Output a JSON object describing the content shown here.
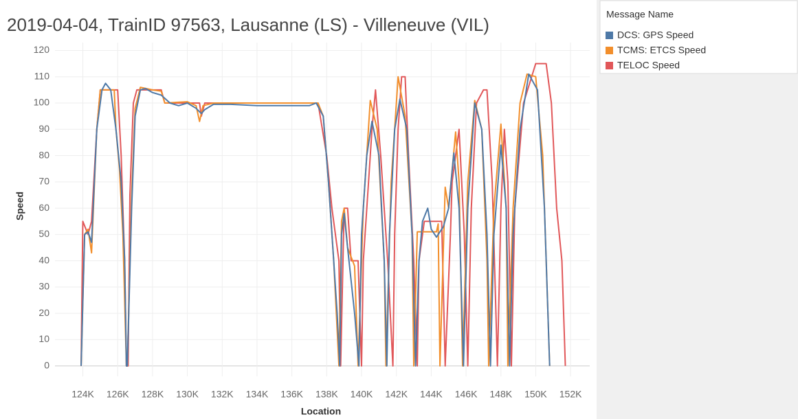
{
  "chart_data": {
    "type": "line",
    "title": "2019-04-04, TrainID 97563, Lausanne (LS) - Villeneuve (VIL)",
    "x_label": "Location",
    "y_label": "Speed",
    "legend_title": "Message Name",
    "legend": "right",
    "grid": true,
    "xlim": [
      122400,
      153100
    ],
    "ylim": [
      -4,
      123
    ],
    "xticks": [
      {
        "value": 124000,
        "label": "124K"
      },
      {
        "value": 126000,
        "label": "126K"
      },
      {
        "value": 128000,
        "label": "128K"
      },
      {
        "value": 130000,
        "label": "130K"
      },
      {
        "value": 132000,
        "label": "132K"
      },
      {
        "value": 134000,
        "label": "134K"
      },
      {
        "value": 136000,
        "label": "136K"
      },
      {
        "value": 138000,
        "label": "138K"
      },
      {
        "value": 140000,
        "label": "140K"
      },
      {
        "value": 142000,
        "label": "142K"
      },
      {
        "value": 144000,
        "label": "144K"
      },
      {
        "value": 146000,
        "label": "146K"
      },
      {
        "value": 148000,
        "label": "148K"
      },
      {
        "value": 150000,
        "label": "150K"
      },
      {
        "value": 152000,
        "label": "152K"
      }
    ],
    "yticks": [
      0,
      10,
      20,
      30,
      40,
      50,
      60,
      70,
      80,
      90,
      100,
      110,
      120
    ],
    "series": [
      {
        "name": "TELOC Speed",
        "color": "#e15759",
        "x": [
          123900,
          124000,
          124300,
          124500,
          124800,
          125000,
          126000,
          126200,
          126300,
          126400,
          126500,
          126600,
          126700,
          126900,
          127100,
          128500,
          128700,
          130700,
          130800,
          131000,
          137500,
          138000,
          138300,
          138500,
          138700,
          138800,
          139000,
          139200,
          139400,
          139800,
          140000,
          140100,
          140400,
          140600,
          140800,
          141100,
          141500,
          141800,
          141900,
          142100,
          142300,
          142500,
          142700,
          143000,
          143200,
          143300,
          143600,
          144600,
          144800,
          145100,
          145200,
          145600,
          145900,
          146100,
          146300,
          146600,
          147000,
          147200,
          147500,
          147800,
          148000,
          148200,
          148400,
          148600,
          148800,
          149300,
          150000,
          150600,
          150900,
          151200,
          151500,
          151700
        ],
        "values": [
          0,
          55,
          50,
          55,
          90,
          105,
          105,
          80,
          60,
          40,
          0,
          0,
          65,
          100,
          105,
          105,
          100,
          100,
          95,
          100,
          100,
          80,
          60,
          50,
          40,
          0,
          60,
          60,
          40,
          40,
          0,
          40,
          70,
          90,
          105,
          80,
          40,
          0,
          50,
          90,
          110,
          110,
          80,
          40,
          0,
          40,
          55,
          55,
          0,
          50,
          70,
          90,
          50,
          0,
          60,
          100,
          105,
          105,
          70,
          0,
          60,
          90,
          70,
          0,
          60,
          100,
          115,
          115,
          100,
          60,
          40,
          0
        ]
      },
      {
        "name": "TCMS: ETCS Speed",
        "color": "#f28e2b",
        "x": [
          123900,
          124100,
          124300,
          124500,
          124800,
          125000,
          125800,
          125900,
          126100,
          126300,
          126500,
          126550,
          126800,
          127000,
          127300,
          128000,
          128500,
          128700,
          130000,
          130500,
          130700,
          130900,
          131500,
          137500,
          137800,
          138100,
          138400,
          138700,
          138850,
          139000,
          139200,
          139600,
          139800,
          140100,
          140500,
          140900,
          141300,
          141400,
          141700,
          142100,
          142500,
          142900,
          143000,
          143200,
          144300,
          144400,
          144500,
          144800,
          145000,
          145400,
          145600,
          145800,
          146100,
          146500,
          146900,
          147200,
          147300,
          147600,
          148000,
          148300,
          148400,
          148700,
          149100,
          149500,
          150000,
          150400,
          150800
        ],
        "values": [
          0,
          50,
          52,
          43,
          90,
          105,
          105,
          90,
          75,
          50,
          0,
          0,
          65,
          98,
          106,
          105,
          104.5,
          100,
          100.5,
          99,
          93,
          99,
          100,
          100,
          95,
          70,
          40,
          0,
          55,
          60,
          45,
          38,
          0,
          60,
          101,
          90,
          40,
          0,
          70,
          110,
          95,
          50,
          0,
          51,
          51,
          54,
          0,
          68,
          60,
          89,
          70,
          0,
          70,
          101,
          90,
          40,
          0,
          60,
          92,
          60,
          0,
          60,
          100,
          111,
          110,
          80,
          0
        ]
      },
      {
        "name": "DCS: GPS Speed",
        "color": "#4e79a7",
        "x": [
          123900,
          124100,
          124300,
          124500,
          124800,
          125100,
          125300,
          125600,
          125900,
          126200,
          126400,
          126500,
          126550,
          126800,
          127000,
          127300,
          127600,
          128000,
          128500,
          129000,
          129500,
          130000,
          130500,
          130800,
          131000,
          131500,
          132500,
          134000,
          136000,
          137000,
          137400,
          137800,
          138100,
          138400,
          138600,
          138750,
          138850,
          139000,
          139200,
          139600,
          139850,
          140000,
          140300,
          140600,
          141000,
          141300,
          141450,
          141600,
          141900,
          142200,
          142600,
          142900,
          143100,
          143300,
          143500,
          143800,
          144000,
          144300,
          144700,
          145000,
          145300,
          145600,
          145850,
          146100,
          146500,
          146900,
          147200,
          147400,
          147600,
          148000,
          148300,
          148500,
          148700,
          149100,
          149600,
          150100,
          150500,
          150800
        ],
        "values": [
          0,
          50,
          51,
          47,
          90,
          105,
          107.5,
          105,
          90,
          70,
          40,
          0,
          0,
          60,
          95,
          105,
          105.5,
          104,
          103,
          100,
          99,
          100,
          98,
          96,
          97.5,
          99.5,
          99.5,
          99,
          99,
          99,
          100,
          95,
          70,
          40,
          20,
          0,
          50,
          58,
          45,
          20,
          0,
          50,
          80,
          93,
          80,
          40,
          0,
          50,
          90,
          101.5,
          90,
          50,
          0,
          40,
          55,
          60,
          52,
          49,
          53,
          60,
          81,
          60,
          0,
          60,
          100,
          90,
          50,
          0,
          50,
          84,
          60,
          0,
          50,
          90,
          111,
          105,
          60,
          0
        ]
      }
    ]
  }
}
